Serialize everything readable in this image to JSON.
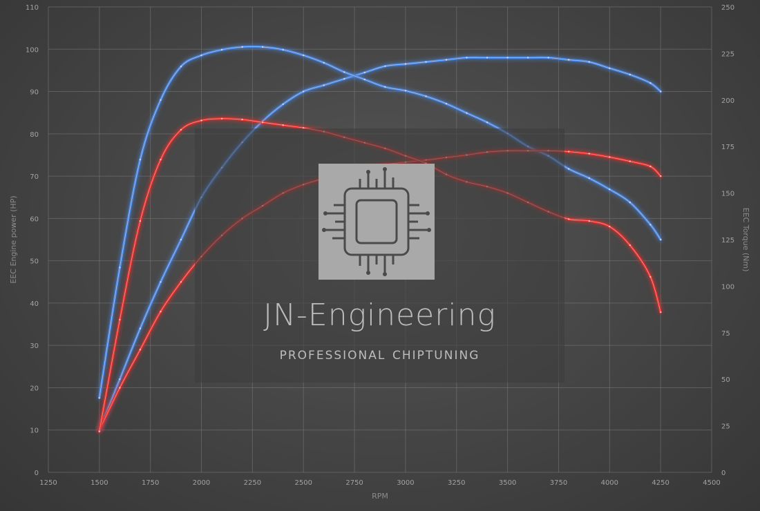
{
  "chart_data": {
    "type": "line",
    "title": "",
    "xlabel": "RPM",
    "ylabel_left": "EEC Engine power (HP)",
    "ylabel_right": "EEC Torque (Nm)",
    "xlim": [
      1250,
      4500
    ],
    "ylim_left": [
      0,
      110
    ],
    "ylim_right": [
      0,
      250
    ],
    "x_ticks": [
      "1250",
      "1500",
      "1750",
      "2000",
      "2250",
      "2500",
      "2750",
      "3000",
      "3250",
      "3500",
      "3750",
      "4000",
      "4250",
      "4500"
    ],
    "y_ticks_left": [
      "0",
      "10",
      "20",
      "30",
      "40",
      "50",
      "60",
      "70",
      "80",
      "90",
      "100",
      "110"
    ],
    "y_ticks_right": [
      "0",
      "25",
      "50",
      "75",
      "100",
      "125",
      "150",
      "175",
      "200",
      "225",
      "250"
    ],
    "grid": true,
    "series": [
      {
        "axis": "left",
        "color": "#4a86e0",
        "points": [
          [
            1500,
            10
          ],
          [
            1600,
            22
          ],
          [
            1700,
            34
          ],
          [
            1800,
            45
          ],
          [
            1900,
            55
          ],
          [
            2000,
            65
          ],
          [
            2100,
            72
          ],
          [
            2200,
            78
          ],
          [
            2300,
            83
          ],
          [
            2400,
            87
          ],
          [
            2500,
            90
          ],
          [
            2600,
            91.5
          ],
          [
            2700,
            93
          ],
          [
            2800,
            94.5
          ],
          [
            2900,
            96
          ],
          [
            3000,
            96.5
          ],
          [
            3100,
            97
          ],
          [
            3200,
            97.5
          ],
          [
            3300,
            98
          ],
          [
            3400,
            98
          ],
          [
            3500,
            98
          ],
          [
            3600,
            98
          ],
          [
            3700,
            98
          ],
          [
            3800,
            97.5
          ],
          [
            3900,
            97
          ],
          [
            4000,
            95.5
          ],
          [
            4100,
            94
          ],
          [
            4200,
            92
          ],
          [
            4250,
            90
          ]
        ]
      },
      {
        "axis": "right",
        "color": "#4a86e0",
        "points": [
          [
            1500,
            40
          ],
          [
            1600,
            110
          ],
          [
            1700,
            168
          ],
          [
            1800,
            200
          ],
          [
            1900,
            218
          ],
          [
            2000,
            224
          ],
          [
            2100,
            227
          ],
          [
            2200,
            228.5
          ],
          [
            2300,
            228.5
          ],
          [
            2400,
            227
          ],
          [
            2500,
            224
          ],
          [
            2600,
            220
          ],
          [
            2700,
            215
          ],
          [
            2800,
            211
          ],
          [
            2900,
            207
          ],
          [
            3000,
            205
          ],
          [
            3100,
            202
          ],
          [
            3200,
            198
          ],
          [
            3300,
            193
          ],
          [
            3400,
            188
          ],
          [
            3500,
            182
          ],
          [
            3600,
            175
          ],
          [
            3700,
            170
          ],
          [
            3800,
            163
          ],
          [
            3900,
            158
          ],
          [
            4000,
            152
          ],
          [
            4100,
            145
          ],
          [
            4200,
            133
          ],
          [
            4250,
            125
          ]
        ]
      },
      {
        "axis": "left",
        "color": "#e0312f",
        "points": [
          [
            1500,
            10
          ],
          [
            1600,
            20
          ],
          [
            1700,
            29
          ],
          [
            1800,
            38
          ],
          [
            1900,
            45
          ],
          [
            2000,
            51
          ],
          [
            2100,
            56
          ],
          [
            2200,
            60
          ],
          [
            2300,
            63
          ],
          [
            2400,
            66
          ],
          [
            2500,
            68
          ],
          [
            2600,
            69.5
          ],
          [
            2700,
            71
          ],
          [
            2800,
            72
          ],
          [
            2900,
            72.8
          ],
          [
            3000,
            73.3
          ],
          [
            3100,
            73.8
          ],
          [
            3200,
            74.4
          ],
          [
            3300,
            75
          ],
          [
            3400,
            75.7
          ],
          [
            3500,
            76
          ],
          [
            3600,
            76
          ],
          [
            3700,
            76
          ],
          [
            3800,
            75.8
          ],
          [
            3900,
            75.3
          ],
          [
            4000,
            74.5
          ],
          [
            4100,
            73.5
          ],
          [
            4200,
            72.3
          ],
          [
            4250,
            70
          ]
        ]
      },
      {
        "axis": "right",
        "color": "#e0312f",
        "points": [
          [
            1500,
            22
          ],
          [
            1600,
            82
          ],
          [
            1700,
            135
          ],
          [
            1800,
            168
          ],
          [
            1900,
            184
          ],
          [
            2000,
            189
          ],
          [
            2100,
            190
          ],
          [
            2200,
            189.5
          ],
          [
            2300,
            188
          ],
          [
            2400,
            186.5
          ],
          [
            2500,
            185
          ],
          [
            2600,
            183
          ],
          [
            2700,
            180
          ],
          [
            2800,
            177
          ],
          [
            2900,
            174
          ],
          [
            3000,
            170
          ],
          [
            3100,
            166
          ],
          [
            3200,
            160
          ],
          [
            3300,
            156
          ],
          [
            3400,
            153.5
          ],
          [
            3500,
            150
          ],
          [
            3600,
            145
          ],
          [
            3700,
            140
          ],
          [
            3800,
            136
          ],
          [
            3900,
            135
          ],
          [
            4000,
            132
          ],
          [
            4100,
            122
          ],
          [
            4200,
            105
          ],
          [
            4250,
            86
          ]
        ]
      }
    ]
  },
  "watermark": {
    "title": "JN-Engineering",
    "subtitle": "professional chiptuning"
  }
}
